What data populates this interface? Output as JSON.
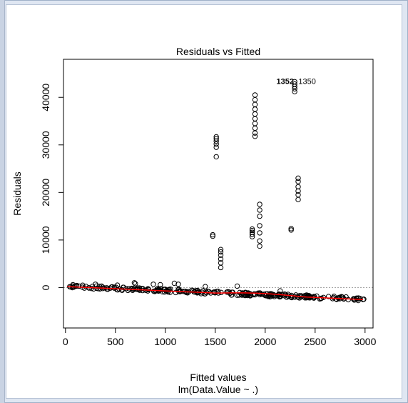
{
  "chart_data": {
    "type": "scatter",
    "title": "Residuals vs Fitted",
    "xlabel": "Fitted values",
    "subtitle": "lm(Data.Value ~ .)",
    "ylabel": "Residuals",
    "xlim": [
      -20,
      3080
    ],
    "ylim": [
      -8500,
      48000
    ],
    "x_ticks": [
      0,
      500,
      1000,
      1500,
      2000,
      2500,
      3000
    ],
    "y_ticks": [
      0,
      10000,
      20000,
      30000,
      40000
    ],
    "zero_line": true,
    "point_labels": [
      {
        "text": "1352",
        "x": 2200,
        "y": 43400,
        "bold": true
      },
      {
        "text": "1350",
        "x": 2420,
        "y": 43400,
        "bold": false
      }
    ],
    "outlier_clusters": [
      {
        "x": 1510,
        "y": [
          27500,
          29500,
          30200,
          30800,
          31300,
          31700
        ]
      },
      {
        "x": 1898,
        "y": [
          31800,
          32500,
          33500,
          34500,
          35500,
          36500,
          37500,
          38500,
          39500,
          40500
        ]
      },
      {
        "x": 2295,
        "y": [
          41200,
          41800,
          42300,
          42800,
          43300
        ]
      },
      {
        "x": 2330,
        "y": [
          18500,
          19500,
          20300,
          21200,
          22300,
          23000
        ]
      },
      {
        "x": 1475,
        "y": [
          10800,
          11100
        ]
      },
      {
        "x": 1555,
        "y": [
          4200,
          5200,
          6000,
          6800,
          7500,
          8000
        ]
      },
      {
        "x": 1870,
        "y": [
          10700,
          11200,
          11600,
          12000,
          12300
        ]
      },
      {
        "x": 1945,
        "y": [
          8700,
          9800,
          11500,
          13000,
          15000,
          16300,
          17500
        ]
      },
      {
        "x": 2260,
        "y": [
          12100,
          12400
        ]
      }
    ],
    "colors": {
      "points": "#000000",
      "smooth": "#ff0000",
      "zero_line": "#9a9a9a"
    }
  }
}
